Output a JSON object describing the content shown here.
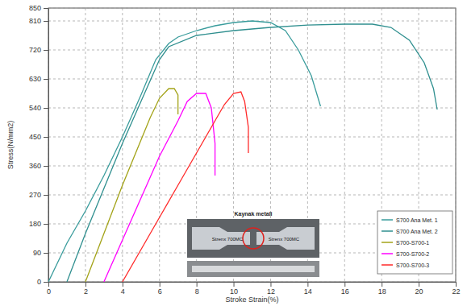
{
  "chart_data": {
    "type": "line",
    "x_label": "Stroke Strain(%)",
    "y_label": "Stress(N/mm2)",
    "xlim": [
      0,
      22
    ],
    "xticks": [
      0,
      2,
      4,
      6,
      8,
      10,
      12,
      14,
      16,
      18,
      20,
      22
    ],
    "ylim": [
      0,
      850
    ],
    "yticks": [
      0,
      90,
      180,
      270,
      360,
      450,
      540,
      630,
      720,
      810,
      850
    ],
    "grid": true,
    "legend": "right",
    "annotations": [
      "Kaynak metali",
      "Strenx 700MC",
      "Strenx 700MC"
    ],
    "series": [
      {
        "name": "S700 Ana Met. 1",
        "color": "#3a9c9c",
        "x": [
          0,
          1,
          2,
          3,
          4,
          5,
          5.8,
          6.5,
          7,
          8,
          9,
          10,
          11,
          12,
          12.8,
          13.5,
          14.2,
          14.7
        ],
        "values": [
          0,
          120,
          220,
          330,
          450,
          580,
          690,
          740,
          760,
          780,
          795,
          805,
          810,
          805,
          780,
          720,
          640,
          545
        ]
      },
      {
        "name": "S700 Ana Met. 2",
        "color": "#2f8f8f",
        "x": [
          1,
          2,
          3,
          4,
          5,
          6,
          6.5,
          8,
          10,
          12,
          14,
          16,
          17.5,
          18.5,
          19.5,
          20.3,
          20.8,
          21
        ],
        "values": [
          0,
          150,
          290,
          430,
          560,
          690,
          730,
          765,
          780,
          790,
          797,
          800,
          800,
          790,
          750,
          680,
          600,
          535
        ]
      },
      {
        "name": "S700-S700-1",
        "color": "#a3a318",
        "x": [
          2,
          3,
          4,
          5,
          5.5,
          6,
          6.5,
          6.8,
          7,
          7
        ],
        "values": [
          0,
          150,
          300,
          440,
          510,
          570,
          600,
          600,
          580,
          520
        ]
      },
      {
        "name": "S700-S700-2",
        "color": "#ff00ff",
        "x": [
          3,
          4,
          5,
          6,
          7,
          7.5,
          8,
          8.5,
          8.8,
          9,
          9
        ],
        "values": [
          0,
          130,
          260,
          390,
          500,
          560,
          585,
          585,
          540,
          430,
          330
        ]
      },
      {
        "name": "S700-S700-3",
        "color": "#ff2a2a",
        "x": [
          4,
          5,
          6,
          7,
          8,
          9,
          9.5,
          10,
          10.4,
          10.6,
          10.8,
          10.8
        ],
        "values": [
          0,
          100,
          200,
          300,
          400,
          500,
          550,
          585,
          590,
          560,
          480,
          400
        ]
      }
    ]
  }
}
